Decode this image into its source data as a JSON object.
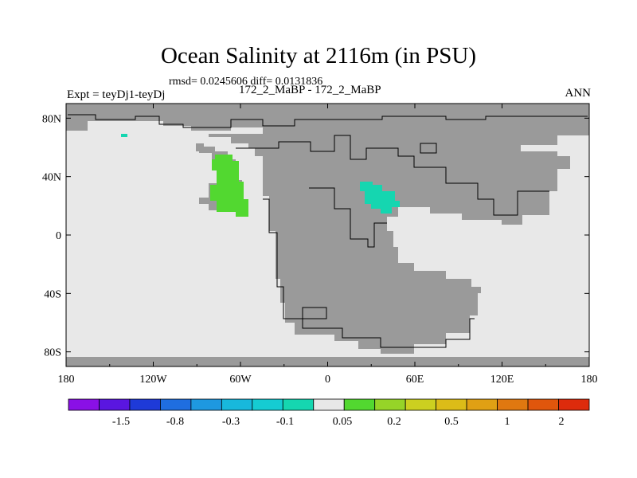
{
  "chart_data": {
    "type": "heatmap",
    "title": "Ocean Salinity at 2116m (in PSU)",
    "subtitle_stats": "rmsd= 0.0245606 diff= 0.0131836",
    "left_label": "Expt = teyDj1-teyDj",
    "center_label": "172_2_MaBP - 172_2_MaBP",
    "right_label": "ANN",
    "x_ticks": [
      "180",
      "120W",
      "60W",
      "0",
      "60E",
      "120E",
      "180"
    ],
    "y_ticks": [
      "80N",
      "40N",
      "0",
      "40S",
      "80S"
    ],
    "x_range": [
      -180,
      180
    ],
    "y_range": [
      -90,
      90
    ],
    "colorbar": {
      "labels": [
        "-1.5",
        "-0.8",
        "-0.3",
        "-0.1",
        "0.05",
        "0.2",
        "0.5",
        "1",
        "2"
      ],
      "colors": [
        "#8a10e6",
        "#5a16e0",
        "#1e3ad8",
        "#1f6ee0",
        "#1e98e0",
        "#18b8dc",
        "#15ccd2",
        "#15d6b0",
        "#e8e8e8",
        "#52d830",
        "#96d428",
        "#ccd020",
        "#dcbc18",
        "#e0a014",
        "#e07810",
        "#e0560c",
        "#dd2b0c"
      ]
    },
    "anomalies": [
      {
        "region": "western margin (~60W-75W, 10N-55N)",
        "class": "0.05 to 0.2",
        "color": "#52d830"
      },
      {
        "region": "central basin (~25E-50E, 20N-38N)",
        "class": "-0.1 to 0.05",
        "color": "#15d6b0"
      },
      {
        "region": "small patch (~145W, 68N)",
        "class": "-0.1 to 0.05",
        "color": "#15d6b0"
      }
    ],
    "land_color": "#9a9a9a",
    "ocean_color": "#e8e8e8"
  }
}
